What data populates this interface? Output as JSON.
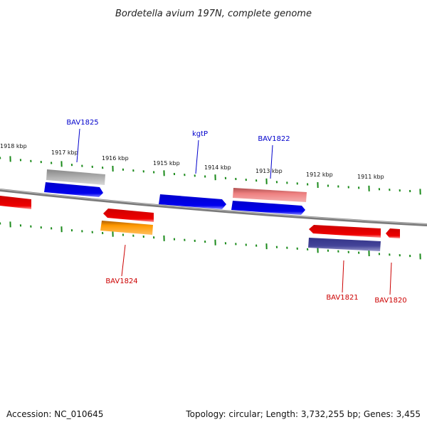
{
  "title": "Bordetella avium 197N, complete genome",
  "accession_label": "Accession: NC_010645",
  "summary_label": "Topology: circular; Length: 3,732,255 bp; Genes: 3,455",
  "ticks": [
    "1918 kbp",
    "1917 kbp",
    "1916 kbp",
    "1915 kbp",
    "1914 kbp",
    "1913 kbp",
    "1912 kbp",
    "1911 kbp"
  ],
  "gene_labels": {
    "bav1825": "BAV1825",
    "kgtp": "kgtP",
    "bav1822": "BAV1822",
    "bav1824": "BAV1824",
    "bav1821": "BAV1821",
    "bav1820": "BAV1820"
  },
  "colors": {
    "blue": "#0000ee",
    "red": "#ee0000",
    "gray": "#b0b0b0",
    "pink": "#ee8080",
    "orange": "#ff9900",
    "navy": "#444499",
    "tick_green": "#1a8a1a",
    "backbone": "#7a7a7a",
    "label_blue": "#0000cc",
    "label_red": "#cc0000"
  }
}
